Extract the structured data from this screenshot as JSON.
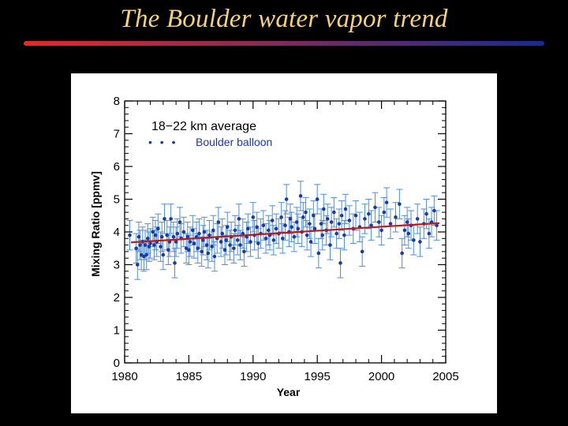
{
  "slide": {
    "title": "The Boulder water vapor trend",
    "rule_colors": [
      "#e8282c",
      "#1a2a8f"
    ]
  },
  "colors": {
    "background": "#000000",
    "title": "#f3d27a",
    "points": "#1c3aa6",
    "error_bars": "#4d8fd6",
    "trend": "#c01818",
    "panel": "#ffffff"
  },
  "chart_data": {
    "type": "scatter",
    "annotation": "18−22 km average",
    "legend": [
      {
        "label": "Boulder balloon",
        "marker": "• • •"
      }
    ],
    "legend_placement": "top-left",
    "xlabel": "Year",
    "ylabel": "Mixing Ratio [ppmv]",
    "xlim": [
      1980,
      2005
    ],
    "ylim": [
      0,
      8
    ],
    "x_ticks": [
      "1980",
      "1985",
      "1990",
      "1995",
      "2000",
      "2005"
    ],
    "y_ticks": [
      "0",
      "1",
      "2",
      "3",
      "4",
      "5",
      "6",
      "7",
      "8"
    ],
    "error_bar": 0.45,
    "trend_line": {
      "x": [
        1980.5,
        2004.5
      ],
      "y": [
        3.68,
        4.27
      ]
    },
    "series": [
      {
        "name": "Boulder balloon",
        "points": [
          [
            1980.4,
            3.9
          ],
          [
            1980.9,
            3.5
          ],
          [
            1981.0,
            3.0
          ],
          [
            1981.1,
            3.85
          ],
          [
            1981.2,
            3.6
          ],
          [
            1981.3,
            3.3
          ],
          [
            1981.4,
            3.7
          ],
          [
            1981.5,
            3.25
          ],
          [
            1981.6,
            3.6
          ],
          [
            1981.7,
            3.3
          ],
          [
            1981.8,
            3.8
          ],
          [
            1981.9,
            3.55
          ],
          [
            1982.0,
            3.65
          ],
          [
            1982.2,
            4.0
          ],
          [
            1982.3,
            3.6
          ],
          [
            1982.4,
            3.9
          ],
          [
            1982.5,
            3.7
          ],
          [
            1982.6,
            4.1
          ],
          [
            1982.8,
            3.55
          ],
          [
            1982.9,
            3.85
          ],
          [
            1983.0,
            3.3
          ],
          [
            1983.1,
            4.4
          ],
          [
            1983.3,
            3.9
          ],
          [
            1983.4,
            3.45
          ],
          [
            1983.5,
            3.7
          ],
          [
            1983.6,
            4.4
          ],
          [
            1983.8,
            3.85
          ],
          [
            1983.9,
            3.05
          ],
          [
            1984.0,
            3.7
          ],
          [
            1984.1,
            3.95
          ],
          [
            1984.3,
            4.3
          ],
          [
            1984.4,
            3.8
          ],
          [
            1984.6,
            4.0
          ],
          [
            1984.8,
            3.5
          ],
          [
            1984.9,
            3.85
          ],
          [
            1985.0,
            3.45
          ],
          [
            1985.1,
            3.7
          ],
          [
            1985.3,
            4.05
          ],
          [
            1985.4,
            3.65
          ],
          [
            1985.6,
            3.85
          ],
          [
            1985.7,
            3.5
          ],
          [
            1985.8,
            3.95
          ],
          [
            1986.0,
            3.4
          ],
          [
            1986.1,
            3.75
          ],
          [
            1986.2,
            4.0
          ],
          [
            1986.4,
            3.6
          ],
          [
            1986.5,
            3.35
          ],
          [
            1986.6,
            3.9
          ],
          [
            1986.8,
            3.55
          ],
          [
            1986.9,
            4.05
          ],
          [
            1987.0,
            3.25
          ],
          [
            1987.2,
            3.8
          ],
          [
            1987.3,
            4.3
          ],
          [
            1987.5,
            3.7
          ],
          [
            1987.6,
            3.95
          ],
          [
            1987.8,
            3.45
          ],
          [
            1987.9,
            3.75
          ],
          [
            1988.0,
            4.15
          ],
          [
            1988.2,
            3.6
          ],
          [
            1988.3,
            3.85
          ],
          [
            1988.5,
            3.5
          ],
          [
            1988.6,
            4.05
          ],
          [
            1988.8,
            3.75
          ],
          [
            1988.9,
            4.4
          ],
          [
            1989.0,
            3.6
          ],
          [
            1989.2,
            3.95
          ],
          [
            1989.3,
            3.4
          ],
          [
            1989.5,
            3.85
          ],
          [
            1989.6,
            4.1
          ],
          [
            1989.8,
            3.7
          ],
          [
            1990.0,
            4.45
          ],
          [
            1990.1,
            3.9
          ],
          [
            1990.3,
            4.15
          ],
          [
            1990.4,
            3.65
          ],
          [
            1990.6,
            3.95
          ],
          [
            1990.8,
            4.2
          ],
          [
            1991.0,
            3.8
          ],
          [
            1991.2,
            4.05
          ],
          [
            1991.3,
            3.9
          ],
          [
            1991.5,
            4.35
          ],
          [
            1991.6,
            3.75
          ],
          [
            1991.8,
            4.1
          ],
          [
            1992.0,
            3.95
          ],
          [
            1992.2,
            4.45
          ],
          [
            1992.3,
            3.8
          ],
          [
            1992.5,
            4.2
          ],
          [
            1992.6,
            5.0
          ],
          [
            1992.8,
            4.0
          ],
          [
            1992.9,
            4.4
          ],
          [
            1993.0,
            4.15
          ],
          [
            1993.2,
            3.85
          ],
          [
            1993.4,
            4.3
          ],
          [
            1993.5,
            4.1
          ],
          [
            1993.7,
            5.1
          ],
          [
            1993.8,
            4.0
          ],
          [
            1993.9,
            4.45
          ],
          [
            1994.1,
            4.6
          ],
          [
            1994.2,
            3.9
          ],
          [
            1994.4,
            4.25
          ],
          [
            1994.5,
            3.7
          ],
          [
            1994.7,
            4.5
          ],
          [
            1994.8,
            4.1
          ],
          [
            1995.0,
            5.0
          ],
          [
            1995.1,
            3.35
          ],
          [
            1995.3,
            4.25
          ],
          [
            1995.4,
            3.9
          ],
          [
            1995.5,
            4.7
          ],
          [
            1995.7,
            4.05
          ],
          [
            1995.8,
            4.4
          ],
          [
            1996.0,
            3.6
          ],
          [
            1996.1,
            4.3
          ],
          [
            1996.3,
            4.6
          ],
          [
            1996.5,
            3.95
          ],
          [
            1996.7,
            4.25
          ],
          [
            1996.8,
            3.05
          ],
          [
            1996.9,
            4.5
          ],
          [
            1997.1,
            3.9
          ],
          [
            1997.2,
            4.7
          ],
          [
            1997.5,
            4.35
          ],
          [
            1997.8,
            4.1
          ],
          [
            1998.0,
            4.5
          ],
          [
            1998.3,
            4.15
          ],
          [
            1998.5,
            3.4
          ],
          [
            1998.7,
            4.4
          ],
          [
            1999.0,
            4.55
          ],
          [
            1999.2,
            4.2
          ],
          [
            1999.5,
            4.75
          ],
          [
            1999.8,
            4.3
          ],
          [
            2000.0,
            4.05
          ],
          [
            2000.2,
            4.6
          ],
          [
            2000.4,
            4.9
          ],
          [
            2000.7,
            4.25
          ],
          [
            2001.1,
            4.45
          ],
          [
            2001.4,
            4.85
          ],
          [
            2001.6,
            3.35
          ],
          [
            2001.8,
            4.05
          ],
          [
            2002.0,
            4.3
          ],
          [
            2002.1,
            3.95
          ],
          [
            2002.3,
            4.2
          ],
          [
            2002.5,
            3.75
          ],
          [
            2002.8,
            4.4
          ],
          [
            2003.0,
            3.7
          ],
          [
            2003.3,
            4.25
          ],
          [
            2003.5,
            4.55
          ],
          [
            2003.7,
            3.95
          ],
          [
            2003.9,
            4.3
          ],
          [
            2004.1,
            4.65
          ],
          [
            2004.3,
            4.2
          ]
        ]
      }
    ]
  }
}
